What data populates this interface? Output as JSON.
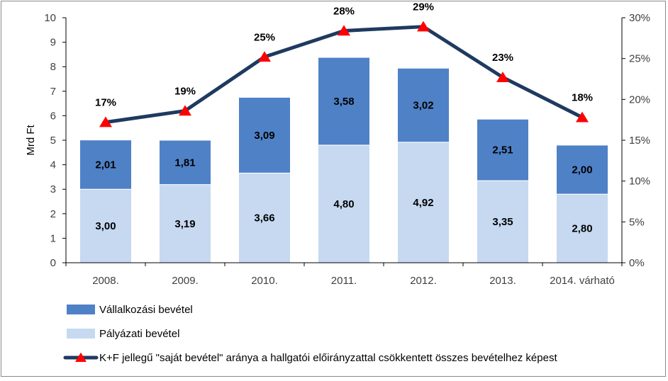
{
  "chart_data": {
    "type": "bar",
    "stacked": true,
    "categories": [
      "2008.",
      "2009.",
      "2010.",
      "2011.",
      "2012.",
      "2013.",
      "2014. várható"
    ],
    "series": [
      {
        "name": "Pályázati bevétel",
        "values": [
          3.0,
          3.19,
          3.66,
          4.8,
          4.92,
          3.35,
          2.8
        ],
        "labels": [
          "3,00",
          "3,19",
          "3,66",
          "4,80",
          "4,92",
          "3,35",
          "2,80"
        ],
        "color": "#c6d9f1"
      },
      {
        "name": "Vállalkozási bevétel",
        "values": [
          2.01,
          1.81,
          3.09,
          3.58,
          3.02,
          2.51,
          2.0
        ],
        "labels": [
          "2,01",
          "1,81",
          "3,09",
          "3,58",
          "3,02",
          "2,51",
          "2,00"
        ],
        "color": "#4f81c7"
      }
    ],
    "line_series": {
      "name": "K+F jellegű \"saját bevétel\" aránya a hallgatói előirányzattal csökkentett összes bevételhez képest",
      "values": [
        17.2,
        18.6,
        25.2,
        28.4,
        28.9,
        22.7,
        17.8
      ],
      "labels": [
        "17%",
        "19%",
        "25%",
        "28%",
        "29%",
        "23%",
        "18%"
      ],
      "line_color": "#1f3a60",
      "marker_color": "#ff0000",
      "axis": "right"
    },
    "ylabel": "Mrd Ft",
    "ylim": [
      0,
      10
    ],
    "y_ticks": [
      "0",
      "1",
      "2",
      "3",
      "4",
      "5",
      "6",
      "7",
      "8",
      "9",
      "10"
    ],
    "y2lim": [
      0,
      30
    ],
    "y2_ticks": [
      "0%",
      "5%",
      "10%",
      "15%",
      "20%",
      "25%",
      "30%"
    ],
    "legend_order": [
      "Vállalkozási bevétel",
      "Pályázati bevétel",
      "K+F jellegű \"saját bevétel\" aránya a hallgatói előirányzattal csökkentett összes bevételhez képest"
    ],
    "legend_position": "bottom-left",
    "grid": false
  }
}
